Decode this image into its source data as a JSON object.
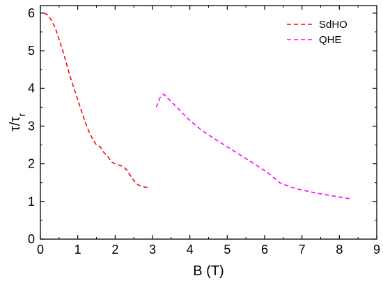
{
  "chart_data": {
    "type": "line",
    "xlabel": "B (T)",
    "ylabel_main": "τ/τ",
    "ylabel_sub": "r",
    "xlim": [
      0,
      9
    ],
    "ylim": [
      0,
      6.2
    ],
    "x_ticks": [
      0,
      1,
      2,
      3,
      4,
      5,
      6,
      7,
      8,
      9
    ],
    "y_ticks": [
      0,
      1,
      2,
      3,
      4,
      5,
      6
    ],
    "grid": false,
    "legend_position": "top-right",
    "series": [
      {
        "name": "SdHO",
        "color": "#ff0000",
        "style": "dashed",
        "x": [
          0.1,
          0.2,
          0.3,
          0.4,
          0.5,
          0.6,
          0.7,
          0.8,
          0.9,
          1.0,
          1.1,
          1.2,
          1.3,
          1.4,
          1.5,
          1.6,
          1.7,
          1.8,
          1.9,
          2.0,
          2.1,
          2.2,
          2.3,
          2.4,
          2.5,
          2.6,
          2.7,
          2.8,
          2.9
        ],
        "y": [
          6.0,
          5.95,
          5.8,
          5.6,
          5.3,
          5.0,
          4.65,
          4.3,
          4.0,
          3.7,
          3.4,
          3.1,
          2.85,
          2.65,
          2.5,
          2.45,
          2.3,
          2.2,
          2.05,
          2.0,
          1.97,
          1.93,
          1.85,
          1.7,
          1.55,
          1.45,
          1.4,
          1.38,
          1.37
        ]
      },
      {
        "name": "QHE",
        "color": "#ff00ff",
        "style": "dashed",
        "x": [
          3.1,
          3.2,
          3.3,
          3.4,
          3.6,
          3.8,
          4.0,
          4.3,
          4.6,
          5.0,
          5.4,
          5.8,
          6.1,
          6.4,
          6.7,
          7.0,
          7.4,
          7.8,
          8.1,
          8.3
        ],
        "y": [
          3.5,
          3.75,
          3.85,
          3.75,
          3.55,
          3.35,
          3.15,
          2.9,
          2.7,
          2.45,
          2.2,
          1.95,
          1.75,
          1.5,
          1.38,
          1.3,
          1.22,
          1.15,
          1.1,
          1.07
        ]
      }
    ]
  }
}
